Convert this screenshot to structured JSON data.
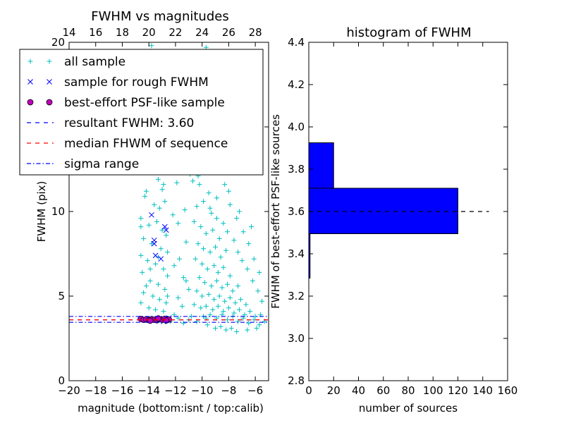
{
  "chart_data": [
    {
      "type": "scatter",
      "title": "FWHM vs magnitudes",
      "xlabel": "magnitude (bottom:isnt / top:calib)",
      "ylabel": "FWHM (pix)",
      "xlim": [
        -20,
        -5
      ],
      "ylim": [
        0,
        20
      ],
      "xticks": [
        "−20",
        "−18",
        "−16",
        "−14",
        "−12",
        "−10",
        "−8",
        "−6"
      ],
      "xtick_values": [
        -20,
        -18,
        -16,
        -14,
        -12,
        -10,
        -8,
        -6
      ],
      "yticks": [
        "0",
        "5",
        "10",
        "15",
        "20"
      ],
      "ytick_values": [
        0,
        5,
        10,
        15,
        20
      ],
      "top_xticks": [
        "14",
        "16",
        "18",
        "20",
        "22",
        "24",
        "26",
        "28"
      ],
      "top_xtick_values": [
        14,
        16,
        18,
        20,
        22,
        24,
        26,
        28
      ],
      "top_axis_offset": 34,
      "legend": {
        "position": "upper-left",
        "entries": [
          {
            "label": "all sample",
            "marker": "+",
            "color": "#00bfbf"
          },
          {
            "label": "sample for rough FWHM",
            "marker": "x",
            "color": "#0000ff"
          },
          {
            "label": "best-effort PSF-like sample",
            "marker": "o",
            "color": "#bf00bf"
          },
          {
            "label": "resultant FWHM: 3.60",
            "marker": "dashed",
            "color": "#0000ff"
          },
          {
            "label": "median FHWM of sequence",
            "marker": "dashed",
            "color": "#ff0000"
          },
          {
            "label": "sigma range",
            "marker": "dashdot",
            "color": "#0000ff"
          }
        ]
      },
      "lines": [
        {
          "name": "resultant FWHM",
          "y": 3.6,
          "style": "dashed",
          "color": "#0000ff"
        },
        {
          "name": "median FHWM of sequence",
          "y": 3.6,
          "style": "dashed",
          "color": "#ff0000"
        },
        {
          "name": "sigma range upper",
          "y": 3.8,
          "style": "dashdot",
          "color": "#0000ff"
        },
        {
          "name": "sigma range lower",
          "y": 3.45,
          "style": "dashdot",
          "color": "#0000ff"
        }
      ],
      "series": [
        {
          "marker": "+",
          "color": "#00bfbf",
          "points": [
            [
              -13.8,
              19.8
            ],
            [
              -13.9,
              17.9
            ],
            [
              -12.9,
              19.2
            ],
            [
              -12.7,
              17.1
            ],
            [
              -9.7,
              19.7
            ],
            [
              -10.3,
              18.3
            ],
            [
              -9.2,
              16.6
            ],
            [
              -9.9,
              15.8
            ],
            [
              -10.6,
              14.9
            ],
            [
              -9.6,
              14.7
            ],
            [
              -8.8,
              14.3
            ],
            [
              -7.9,
              18.7
            ],
            [
              -6.4,
              17.1
            ],
            [
              -14.5,
              13.6
            ],
            [
              -14.1,
              12.6
            ],
            [
              -13.5,
              12.8
            ],
            [
              -13.3,
              11.9
            ],
            [
              -12.9,
              11.6
            ],
            [
              -13.0,
              11.3
            ],
            [
              -14.2,
              11.2
            ],
            [
              -13.6,
              10.4
            ],
            [
              -13.2,
              10.2
            ],
            [
              -12.8,
              10.6
            ],
            [
              -14.6,
              9.6
            ],
            [
              -14.0,
              9.2
            ],
            [
              -13.4,
              9.4
            ],
            [
              -13.0,
              8.9
            ],
            [
              -12.7,
              8.6
            ],
            [
              -14.4,
              8.4
            ],
            [
              -13.8,
              8.1
            ],
            [
              -13.1,
              7.8
            ],
            [
              -14.6,
              7.4
            ],
            [
              -14.1,
              7.1
            ],
            [
              -13.5,
              6.9
            ],
            [
              -12.9,
              6.6
            ],
            [
              -12.6,
              6.2
            ],
            [
              -14.5,
              6.4
            ],
            [
              -13.9,
              5.9
            ],
            [
              -13.3,
              5.7
            ],
            [
              -12.8,
              5.4
            ],
            [
              -14.4,
              5.2
            ],
            [
              -13.7,
              5.0
            ],
            [
              -13.2,
              4.8
            ],
            [
              -12.7,
              4.6
            ],
            [
              -14.6,
              4.6
            ],
            [
              -14.0,
              4.3
            ],
            [
              -13.5,
              4.2
            ],
            [
              -12.9,
              4.1
            ],
            [
              -13.7,
              13.1
            ],
            [
              -14.3,
              10.9
            ],
            [
              -14.6,
              9.1
            ],
            [
              -13.3,
              7.3
            ],
            [
              -12.6,
              7.6
            ],
            [
              -13.9,
              6.6
            ],
            [
              -14.2,
              5.6
            ],
            [
              -12.6,
              5.0
            ],
            [
              -11.6,
              14.4
            ],
            [
              -11.1,
              15.2
            ],
            [
              -11.4,
              12.7
            ],
            [
              -11.9,
              11.7
            ],
            [
              -11.3,
              10.1
            ],
            [
              -11.8,
              9.3
            ],
            [
              -11.2,
              8.2
            ],
            [
              -11.7,
              7.2
            ],
            [
              -11.4,
              6.1
            ],
            [
              -11.0,
              5.4
            ],
            [
              -11.8,
              4.9
            ],
            [
              -11.5,
              4.4
            ],
            [
              -12.2,
              9.8
            ],
            [
              -12.1,
              6.8
            ],
            [
              -11.6,
              13.2
            ],
            [
              -11.2,
              5.9
            ],
            [
              -10.9,
              12.2
            ],
            [
              -10.5,
              13.3
            ],
            [
              -10.2,
              11.6
            ],
            [
              -9.8,
              12.7
            ],
            [
              -9.5,
              11.1
            ],
            [
              -10.4,
              10.3
            ],
            [
              -9.9,
              10.6
            ],
            [
              -9.3,
              9.9
            ],
            [
              -8.9,
              10.8
            ],
            [
              -10.6,
              9.4
            ],
            [
              -10.1,
              9.1
            ],
            [
              -9.7,
              8.7
            ],
            [
              -9.2,
              8.9
            ],
            [
              -8.7,
              8.4
            ],
            [
              -10.3,
              8.1
            ],
            [
              -9.9,
              7.8
            ],
            [
              -9.4,
              7.6
            ],
            [
              -9.0,
              7.9
            ],
            [
              -8.6,
              7.3
            ],
            [
              -8.2,
              7.7
            ],
            [
              -10.5,
              7.2
            ],
            [
              -10.0,
              6.9
            ],
            [
              -9.6,
              6.6
            ],
            [
              -9.1,
              6.8
            ],
            [
              -8.8,
              6.4
            ],
            [
              -8.4,
              6.7
            ],
            [
              -7.9,
              6.2
            ],
            [
              -10.2,
              6.1
            ],
            [
              -9.8,
              5.8
            ],
            [
              -9.3,
              5.6
            ],
            [
              -8.9,
              5.9
            ],
            [
              -8.5,
              5.5
            ],
            [
              -8.1,
              5.7
            ],
            [
              -7.7,
              5.3
            ],
            [
              -7.3,
              5.6
            ],
            [
              -10.4,
              5.3
            ],
            [
              -10.0,
              5.0
            ],
            [
              -9.5,
              5.1
            ],
            [
              -9.1,
              4.8
            ],
            [
              -8.7,
              5.0
            ],
            [
              -8.3,
              4.7
            ],
            [
              -7.9,
              4.9
            ],
            [
              -7.5,
              4.6
            ],
            [
              -7.1,
              4.8
            ],
            [
              -6.7,
              4.5
            ],
            [
              -10.6,
              4.5
            ],
            [
              -10.1,
              4.3
            ],
            [
              -9.7,
              4.4
            ],
            [
              -9.2,
              4.2
            ],
            [
              -8.8,
              4.4
            ],
            [
              -8.4,
              4.1
            ],
            [
              -8.0,
              4.3
            ],
            [
              -7.6,
              4.0
            ],
            [
              -7.2,
              4.2
            ],
            [
              -6.8,
              3.9
            ],
            [
              -6.4,
              4.1
            ],
            [
              -6.0,
              3.8
            ],
            [
              -5.6,
              3.9
            ],
            [
              -9.9,
              3.8
            ],
            [
              -9.4,
              3.9
            ],
            [
              -8.9,
              3.7
            ],
            [
              -8.5,
              3.9
            ],
            [
              -8.1,
              3.6
            ],
            [
              -7.7,
              3.8
            ],
            [
              -7.3,
              3.5
            ],
            [
              -6.9,
              3.7
            ],
            [
              -6.5,
              3.4
            ],
            [
              -6.1,
              3.6
            ],
            [
              -5.7,
              3.3
            ],
            [
              -5.3,
              3.5
            ],
            [
              -8.6,
              3.2
            ],
            [
              -8.2,
              3.0
            ],
            [
              -7.8,
              3.1
            ],
            [
              -7.4,
              2.9
            ],
            [
              -9.6,
              3.3
            ],
            [
              -9.0,
              3.1
            ],
            [
              -6.6,
              3.0
            ],
            [
              -5.9,
              3.1
            ],
            [
              -9.4,
              10.2
            ],
            [
              -8.9,
              9.6
            ],
            [
              -8.4,
              9.3
            ],
            [
              -8.1,
              8.8
            ],
            [
              -7.6,
              8.3
            ],
            [
              -7.3,
              7.6
            ],
            [
              -7.0,
              7.1
            ],
            [
              -6.6,
              6.6
            ],
            [
              -6.2,
              5.9
            ],
            [
              -5.8,
              5.3
            ],
            [
              -5.5,
              4.7
            ],
            [
              -10.7,
              11.8
            ],
            [
              -10.3,
              12.1
            ],
            [
              -9.6,
              13.6
            ],
            [
              -9.2,
              13.9
            ],
            [
              -8.6,
              12.4
            ],
            [
              -8.3,
              11.6
            ],
            [
              -7.9,
              10.4
            ],
            [
              -7.4,
              9.6
            ],
            [
              -6.9,
              8.8
            ],
            [
              -6.5,
              8.1
            ],
            [
              -6.1,
              7.2
            ],
            [
              -5.7,
              6.4
            ],
            [
              -9.0,
              12.9
            ],
            [
              -8.0,
              11.2
            ],
            [
              -7.2,
              10.0
            ],
            [
              -6.3,
              9.1
            ],
            [
              -14.7,
              3.7
            ],
            [
              -14.0,
              3.6
            ],
            [
              -13.2,
              3.7
            ],
            [
              -12.4,
              3.5
            ],
            [
              -11.8,
              3.7
            ],
            [
              -11.0,
              3.6
            ],
            [
              -10.4,
              3.5
            ],
            [
              -9.7,
              3.7
            ],
            [
              -12.1,
              3.9
            ],
            [
              -11.4,
              3.4
            ],
            [
              -10.8,
              3.8
            ]
          ]
        },
        {
          "marker": "x",
          "color": "#0000ff",
          "points": [
            [
              -13.8,
              9.8
            ],
            [
              -12.8,
              9.1
            ],
            [
              -12.7,
              8.9
            ],
            [
              -13.6,
              8.3
            ],
            [
              -13.6,
              8.1
            ],
            [
              -13.5,
              7.4
            ],
            [
              -13.1,
              7.2
            ],
            [
              -12.9,
              3.5
            ],
            [
              -13.4,
              3.6
            ],
            [
              -12.5,
              3.7
            ]
          ]
        },
        {
          "marker": "o",
          "color": "#bf00bf",
          "points": [
            [
              -14.6,
              3.65
            ],
            [
              -14.4,
              3.6
            ],
            [
              -14.2,
              3.62
            ],
            [
              -14.0,
              3.58
            ],
            [
              -13.8,
              3.64
            ],
            [
              -13.6,
              3.6
            ],
            [
              -13.4,
              3.57
            ],
            [
              -13.2,
              3.63
            ],
            [
              -13.0,
              3.6
            ],
            [
              -12.8,
              3.66
            ],
            [
              -12.6,
              3.59
            ],
            [
              -12.5,
              3.62
            ],
            [
              -13.9,
              3.55
            ],
            [
              -13.3,
              3.68
            ],
            [
              -12.7,
              3.56
            ]
          ]
        }
      ]
    },
    {
      "type": "bar",
      "orientation": "horizontal",
      "title": "histogram of FWHM",
      "xlabel": "number of sources",
      "ylabel": "FWHM of best-effort PSF-like sources",
      "xlim": [
        0,
        160
      ],
      "ylim": [
        2.8,
        4.4
      ],
      "xticks": [
        "0",
        "20",
        "40",
        "60",
        "80",
        "100",
        "120",
        "140",
        "160"
      ],
      "xtick_values": [
        0,
        20,
        40,
        60,
        80,
        100,
        120,
        140,
        160
      ],
      "yticks": [
        "2.8",
        "3.0",
        "3.2",
        "3.4",
        "3.6",
        "3.8",
        "4.0",
        "4.2",
        "4.4"
      ],
      "ytick_values": [
        2.8,
        3.0,
        3.2,
        3.4,
        3.6,
        3.8,
        4.0,
        4.2,
        4.4
      ],
      "bars": [
        {
          "y0": 3.285,
          "y1": 3.495,
          "value": 1
        },
        {
          "y0": 3.495,
          "y1": 3.71,
          "value": 120
        },
        {
          "y0": 3.71,
          "y1": 3.925,
          "value": 20
        }
      ],
      "bar_color": "#0000ff",
      "reference_line": {
        "y": 3.6,
        "x": [
          0,
          145
        ],
        "style": "dashed",
        "color": "#000000"
      }
    }
  ]
}
